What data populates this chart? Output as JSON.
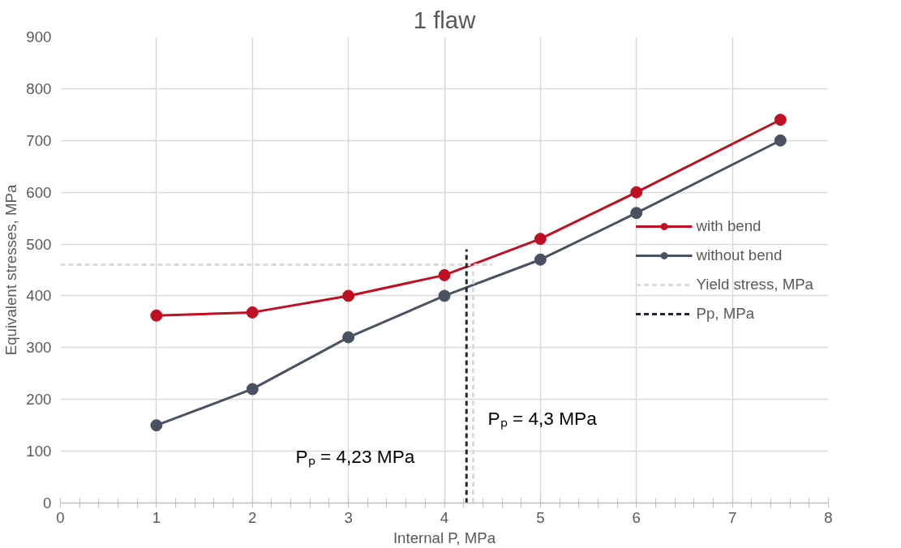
{
  "chart_data": {
    "type": "line",
    "title": "1 flaw",
    "xlabel": "Internal P, MPa",
    "ylabel": "Equivalent stresses, MPa",
    "x": [
      1,
      2,
      3,
      4,
      5,
      6,
      7.5
    ],
    "series": [
      {
        "name": "with bend",
        "color": "#c00f23",
        "values": [
          362,
          368,
          400,
          440,
          510,
          600,
          740
        ],
        "marker": "circle",
        "line_style": "solid"
      },
      {
        "name": "without bend",
        "color": "#4a5163",
        "values": [
          150,
          220,
          320,
          400,
          470,
          560,
          700
        ],
        "marker": "circle",
        "line_style": "solid"
      },
      {
        "name": "Yield stress, MPa",
        "color": "#d9dcdc",
        "x": [
          0,
          4.5
        ],
        "values": [
          460,
          460
        ],
        "marker": "none",
        "line_style": "dashed"
      },
      {
        "color": "#d9dcdc",
        "x": [
          4.3,
          4.3
        ],
        "values": [
          0,
          455
        ],
        "marker": "none",
        "line_style": "dashed"
      },
      {
        "name": "Pp, MPa",
        "color": "#222633",
        "x": [
          4.23,
          4.23
        ],
        "values": [
          0,
          490
        ],
        "marker": "none",
        "line_style": "dashed"
      }
    ],
    "annotations": [
      "Pₚ = 4,23 MPa",
      "Pₚ = 4,3 MPa"
    ],
    "xlim": [
      0,
      8
    ],
    "ylim": [
      0,
      900
    ],
    "xticks": [
      0,
      {
        "value": 0.2,
        "label": null
      },
      {
        "value": 0.4,
        "label": null
      },
      {
        "value": 0.6,
        "label": null
      },
      {
        "value": 0.8,
        "label": null
      },
      1,
      {
        "value": 1.2,
        "label": null
      },
      {
        "value": 1.4,
        "label": null
      },
      {
        "value": 1.6,
        "label": null
      },
      {
        "value": 1.8,
        "label": null
      },
      2,
      {
        "value": 2.2,
        "label": null
      },
      {
        "value": 2.4,
        "label": null
      },
      {
        "value": 2.6,
        "label": null
      },
      {
        "value": 2.8,
        "label": null
      },
      3,
      {
        "value": 3.2,
        "label": null
      },
      {
        "value": 3.4,
        "label": null
      },
      {
        "value": 3.6,
        "label": null
      },
      {
        "value": 3.8,
        "label": null
      },
      4,
      {
        "value": 4.2,
        "label": null
      },
      {
        "value": 4.4,
        "label": null
      },
      {
        "value": 4.6,
        "label": null
      },
      {
        "value": 4.8,
        "label": null
      },
      5,
      {
        "value": 5.2,
        "label": null
      },
      {
        "value": 5.4,
        "label": null
      },
      {
        "value": 5.6,
        "label": null
      },
      {
        "value": 5.8,
        "label": null
      },
      6,
      {
        "value": 6.2,
        "label": null
      },
      {
        "value": 6.4,
        "label": null
      },
      {
        "value": 6.6,
        "label": null
      },
      {
        "value": 6.8,
        "label": null
      },
      7,
      {
        "value": 7.2,
        "label": null
      },
      {
        "value": 7.4,
        "label": null
      },
      {
        "value": 7.6,
        "label": null
      },
      {
        "value": 7.8,
        "label": null
      },
      8
    ],
    "yticks": [
      0,
      100,
      200,
      300,
      400,
      500,
      600,
      700,
      800,
      900
    ],
    "grid": true,
    "legend": "right"
  }
}
